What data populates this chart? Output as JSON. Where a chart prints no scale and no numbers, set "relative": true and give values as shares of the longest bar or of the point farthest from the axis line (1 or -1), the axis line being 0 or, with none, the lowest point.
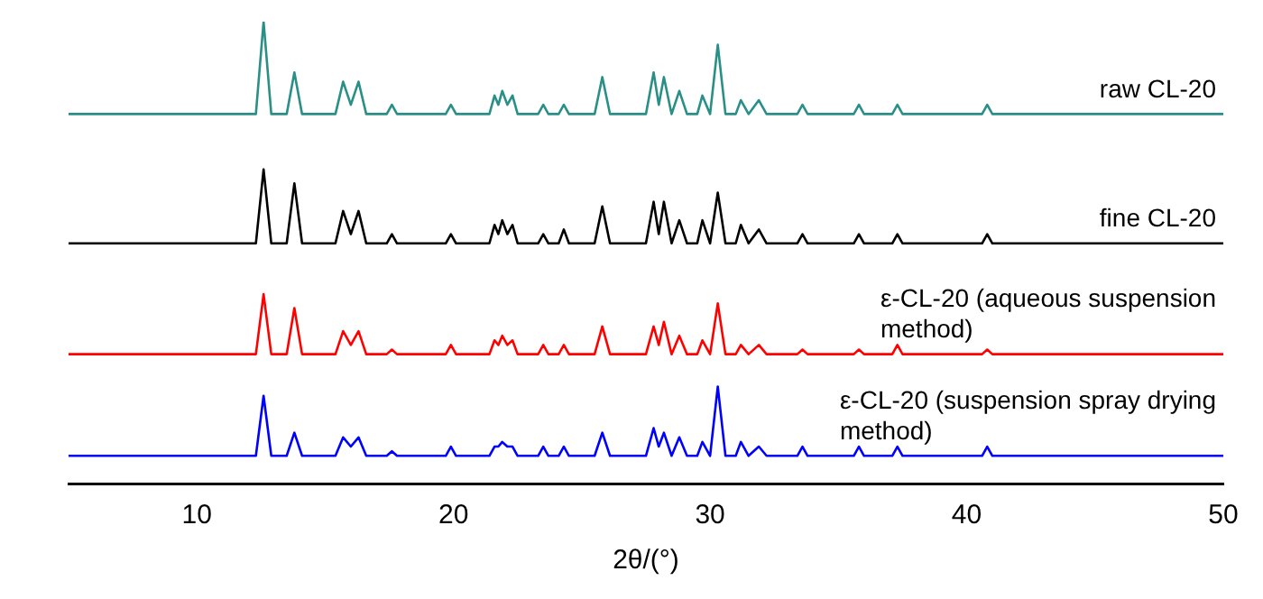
{
  "chart_data": {
    "type": "line",
    "relative": true,
    "xlabel": "2θ/(°)",
    "xlim": [
      5,
      50
    ],
    "xticks": [
      10,
      20,
      30,
      40,
      50
    ],
    "marker": "none",
    "x": [
      5,
      12.3,
      12.6,
      12.9,
      13.5,
      13.8,
      14.1,
      15.4,
      15.7,
      16.0,
      16.3,
      16.6,
      17.4,
      17.6,
      17.8,
      19.7,
      19.9,
      20.1,
      21.4,
      21.6,
      21.75,
      21.9,
      22.1,
      22.3,
      22.5,
      23.3,
      23.5,
      23.7,
      24.1,
      24.3,
      24.5,
      25.5,
      25.8,
      26.1,
      27.5,
      27.8,
      28.0,
      28.2,
      28.5,
      28.8,
      29.1,
      29.5,
      29.7,
      30.0,
      30.3,
      30.6,
      31.0,
      31.2,
      31.5,
      31.9,
      32.2,
      33.4,
      33.6,
      33.8,
      35.6,
      35.8,
      36.0,
      37.1,
      37.3,
      37.5,
      40.6,
      40.8,
      41.0,
      50
    ],
    "series": [
      {
        "name": "raw CL-20",
        "color": "#2a8f86",
        "values": [
          0.8,
          0.8,
          1.0,
          0.8,
          0.8,
          0.89,
          0.8,
          0.8,
          0.87,
          0.82,
          0.87,
          0.8,
          0.8,
          0.82,
          0.8,
          0.8,
          0.82,
          0.8,
          0.8,
          0.84,
          0.82,
          0.85,
          0.82,
          0.84,
          0.8,
          0.8,
          0.82,
          0.8,
          0.8,
          0.82,
          0.8,
          0.8,
          0.88,
          0.8,
          0.8,
          0.89,
          0.82,
          0.88,
          0.8,
          0.85,
          0.8,
          0.8,
          0.84,
          0.8,
          0.95,
          0.8,
          0.8,
          0.83,
          0.8,
          0.83,
          0.8,
          0.8,
          0.82,
          0.8,
          0.8,
          0.82,
          0.8,
          0.8,
          0.82,
          0.8,
          0.8,
          0.82,
          0.8,
          0.8
        ]
      },
      {
        "name": "fine CL-20",
        "color": "#000000",
        "values": [
          0.52,
          0.52,
          0.68,
          0.52,
          0.52,
          0.65,
          0.52,
          0.52,
          0.59,
          0.54,
          0.59,
          0.52,
          0.52,
          0.54,
          0.52,
          0.52,
          0.54,
          0.52,
          0.52,
          0.56,
          0.54,
          0.57,
          0.54,
          0.56,
          0.52,
          0.52,
          0.54,
          0.52,
          0.52,
          0.55,
          0.52,
          0.52,
          0.6,
          0.52,
          0.52,
          0.61,
          0.54,
          0.61,
          0.52,
          0.57,
          0.52,
          0.52,
          0.57,
          0.52,
          0.63,
          0.52,
          0.52,
          0.56,
          0.52,
          0.55,
          0.52,
          0.52,
          0.54,
          0.52,
          0.52,
          0.54,
          0.52,
          0.52,
          0.54,
          0.52,
          0.52,
          0.54,
          0.52,
          0.52
        ]
      },
      {
        "name": "ε-CL-20 (aqueous suspension method)",
        "color": "#ff0000",
        "values": [
          0.28,
          0.28,
          0.41,
          0.28,
          0.28,
          0.38,
          0.28,
          0.28,
          0.33,
          0.3,
          0.33,
          0.28,
          0.28,
          0.29,
          0.28,
          0.28,
          0.3,
          0.28,
          0.28,
          0.31,
          0.3,
          0.32,
          0.3,
          0.31,
          0.28,
          0.28,
          0.3,
          0.28,
          0.28,
          0.3,
          0.28,
          0.28,
          0.34,
          0.28,
          0.28,
          0.34,
          0.3,
          0.35,
          0.28,
          0.32,
          0.28,
          0.28,
          0.31,
          0.28,
          0.39,
          0.28,
          0.28,
          0.3,
          0.28,
          0.3,
          0.28,
          0.28,
          0.29,
          0.28,
          0.28,
          0.29,
          0.28,
          0.28,
          0.3,
          0.28,
          0.28,
          0.29,
          0.28,
          0.28
        ]
      },
      {
        "name": "ε-CL-20 (suspension spray drying method)",
        "color": "#0000ff",
        "values": [
          0.06,
          0.06,
          0.19,
          0.06,
          0.06,
          0.11,
          0.06,
          0.06,
          0.1,
          0.08,
          0.1,
          0.06,
          0.06,
          0.07,
          0.06,
          0.06,
          0.08,
          0.06,
          0.06,
          0.08,
          0.08,
          0.09,
          0.08,
          0.08,
          0.06,
          0.06,
          0.08,
          0.06,
          0.06,
          0.08,
          0.06,
          0.06,
          0.11,
          0.06,
          0.06,
          0.12,
          0.08,
          0.11,
          0.06,
          0.1,
          0.06,
          0.06,
          0.09,
          0.06,
          0.21,
          0.06,
          0.06,
          0.09,
          0.06,
          0.08,
          0.06,
          0.06,
          0.08,
          0.06,
          0.06,
          0.08,
          0.06,
          0.06,
          0.08,
          0.06,
          0.06,
          0.08,
          0.06,
          0.06
        ]
      }
    ]
  }
}
